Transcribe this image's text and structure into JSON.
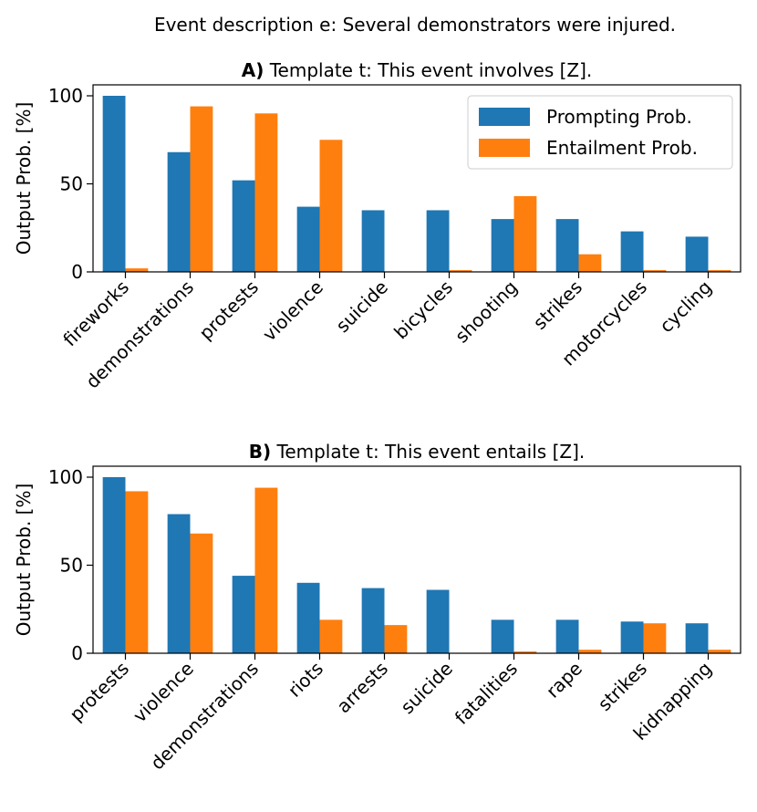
{
  "figure_title": "Event description e: Several demonstrators were injured.",
  "colors": {
    "prompting": "#1f77b4",
    "entailment": "#ff7f0e"
  },
  "chart_data": [
    {
      "type": "bar",
      "title_bold": "A)",
      "title": "Template t: This event involves [Z].",
      "xlabel": "",
      "ylabel": "Output Prob. [%]",
      "ylim": [
        0,
        100
      ],
      "yticks": [
        0,
        50,
        100
      ],
      "legend": "top-right",
      "categories": [
        "fireworks",
        "demonstrations",
        "protests",
        "violence",
        "suicide",
        "bicycles",
        "shooting",
        "strikes",
        "motorcycles",
        "cycling"
      ],
      "series": [
        {
          "name": "Prompting Prob.",
          "values": [
            100,
            68,
            52,
            37,
            35,
            35,
            30,
            30,
            23,
            20
          ]
        },
        {
          "name": "Entailment Prob.",
          "values": [
            2,
            94,
            90,
            75,
            0,
            1,
            43,
            10,
            1,
            1
          ]
        }
      ]
    },
    {
      "type": "bar",
      "title_bold": "B)",
      "title": "Template t: This event entails [Z].",
      "xlabel": "",
      "ylabel": "Output Prob. [%]",
      "ylim": [
        0,
        100
      ],
      "yticks": [
        0,
        50,
        100
      ],
      "categories": [
        "protests",
        "violence",
        "demonstrations",
        "riots",
        "arrests",
        "suicide",
        "fatalities",
        "rape",
        "strikes",
        "kidnapping"
      ],
      "series": [
        {
          "name": "Prompting Prob.",
          "values": [
            100,
            79,
            44,
            40,
            37,
            36,
            19,
            19,
            18,
            17
          ]
        },
        {
          "name": "Entailment Prob.",
          "values": [
            92,
            68,
            94,
            19,
            16,
            0,
            1,
            2,
            17,
            2
          ]
        }
      ]
    }
  ]
}
